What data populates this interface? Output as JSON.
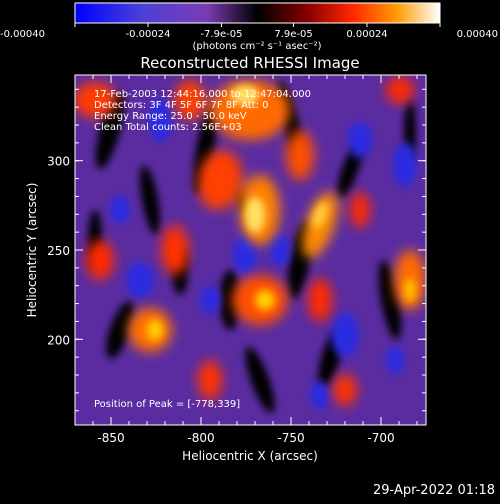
{
  "chart_data": {
    "type": "heatmap",
    "title": "Reconstructed RHESSI Image",
    "xlabel": "Heliocentric X (arcsec)",
    "ylabel": "Heliocentric Y (arcsec)",
    "xlim": [
      -870,
      -675
    ],
    "ylim": [
      152,
      348
    ],
    "xticks": [
      {
        "value": -850,
        "label": "-850"
      },
      {
        "value": -800,
        "label": "-800"
      },
      {
        "value": -750,
        "label": "-750"
      },
      {
        "value": -700,
        "label": "-700"
      }
    ],
    "yticks": [
      {
        "value": 200,
        "label": "200"
      },
      {
        "value": 250,
        "label": "250"
      },
      {
        "value": 300,
        "label": "300"
      }
    ],
    "colorbar": {
      "range": [
        -0.0004,
        0.0004
      ],
      "unit_label": "(photons cm⁻² s⁻¹ asec⁻²)",
      "ticks": [
        {
          "value": -0.0004,
          "label": "-0.00040"
        },
        {
          "value": -0.00024,
          "label": "-0.00024"
        },
        {
          "value": -7.9e-05,
          "label": "-7.9e-05"
        },
        {
          "value": 7.9e-05,
          "label": "7.9e-05"
        },
        {
          "value": 0.00024,
          "label": "0.00024"
        },
        {
          "value": 0.0004,
          "label": "0.00040"
        }
      ]
    },
    "annotations": [
      "17-Feb-2003 12:44:16.000 to 12:47:04.000",
      "Detectors: 3F 4F 5F 6F 7F 8F  Att: 0",
      "Energy Range: 25.0 - 50.0 keV",
      "Clean     Total counts: 2.56E+03"
    ],
    "peak_label": "Position of Peak = [-778,339]",
    "peak_position": [
      -778,
      339
    ]
  },
  "timestamp": "29-Apr-2022 01:18",
  "colors": {
    "background": "#000000",
    "text": "#ffffff",
    "colormap": [
      "#0000ff",
      "#4040c8",
      "#7a3cb4",
      "#5a2ca0",
      "#000000",
      "#8a0000",
      "#ff2800",
      "#ff8c00",
      "#ffd700",
      "#ffffff"
    ]
  }
}
